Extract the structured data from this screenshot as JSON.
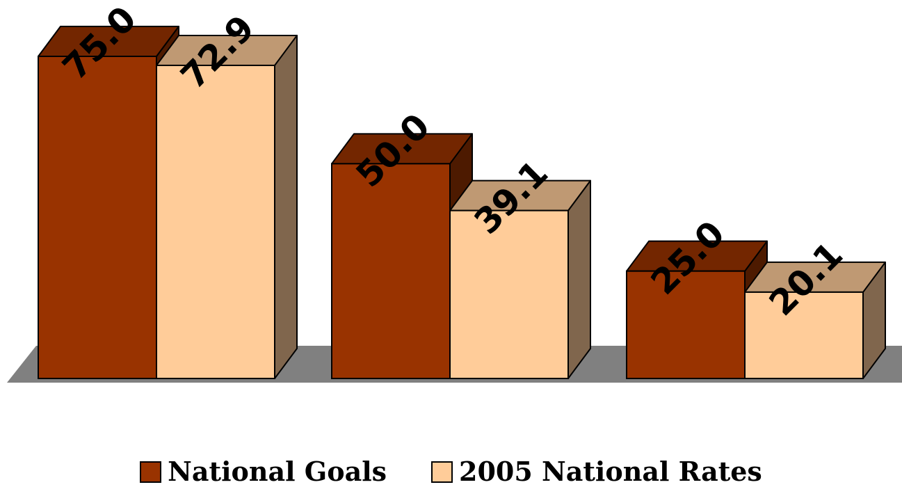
{
  "chart_data": {
    "type": "bar",
    "title": "",
    "xlabel": "",
    "ylabel": "",
    "categories": [
      "",
      "",
      ""
    ],
    "series": [
      {
        "name": "National Goals",
        "values": [
          75.0,
          50.0,
          25.0
        ],
        "labels": [
          "75.0",
          "50.0",
          "25.0"
        ],
        "color": "#993300"
      },
      {
        "name": "2005 National Rates",
        "values": [
          72.9,
          39.1,
          20.1
        ],
        "labels": [
          "72.9",
          "39.1",
          "20.1"
        ],
        "color": "#FFCC99"
      }
    ],
    "ylim": [
      0,
      75
    ],
    "style": "3d",
    "grid": false,
    "legend_position": "bottom"
  }
}
